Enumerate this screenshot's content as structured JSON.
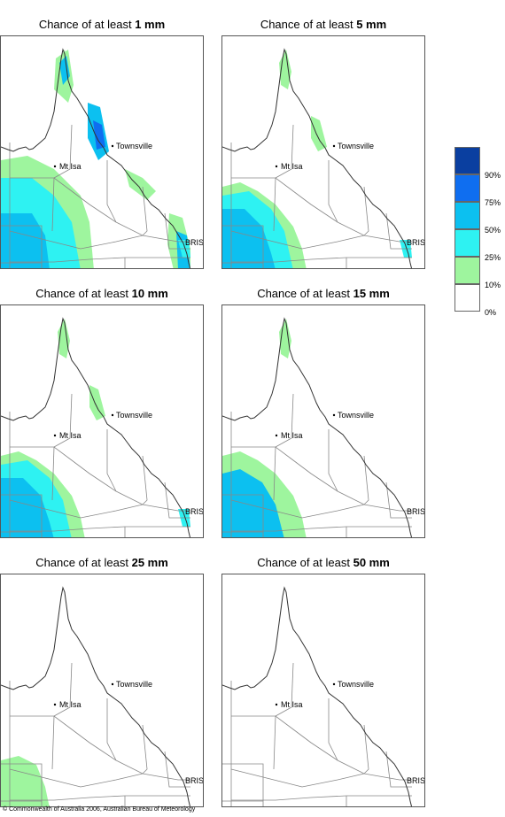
{
  "colors": {
    "p10": "#9ef59e",
    "p25": "#2ef2f2",
    "p50": "#0cc0f0",
    "p75": "#0f6ef0",
    "p90": "#0a3fa0",
    "outline": "#333333",
    "border": "#888888"
  },
  "panels": [
    {
      "prefix": "Chance of at least ",
      "amount": "1 mm",
      "intensity": 3
    },
    {
      "prefix": "Chance of at least ",
      "amount": "5 mm",
      "intensity": 2
    },
    {
      "prefix": "Chance of at least ",
      "amount": "10 mm",
      "intensity": 2
    },
    {
      "prefix": "Chance of at least ",
      "amount": "15 mm",
      "intensity": 1
    },
    {
      "prefix": "Chance of at least ",
      "amount": "25 mm",
      "intensity": 0.5
    },
    {
      "prefix": "Chance of at least ",
      "amount": "50 mm",
      "intensity": 0
    }
  ],
  "labels": {
    "townsville": "Townsville",
    "mtisa": "Mt Isa",
    "bris": "BRIS"
  },
  "legend": {
    "labels": [
      "90%",
      "75%",
      "50%",
      "25%",
      "10%",
      "0%"
    ]
  },
  "copyright": "© Commonwealth of Australia 2006, Australian Bureau of Meteorology"
}
